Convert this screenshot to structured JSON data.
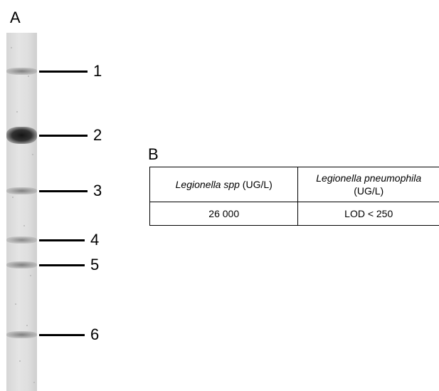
{
  "panel_a": {
    "label": "A",
    "bands": [
      {
        "label": "1",
        "intensity": 0.35
      },
      {
        "label": "2",
        "intensity": 1.0
      },
      {
        "label": "3",
        "intensity": 0.35
      },
      {
        "label": "4",
        "intensity": 0.3
      },
      {
        "label": "5",
        "intensity": 0.35
      },
      {
        "label": "6",
        "intensity": 0.35
      }
    ]
  },
  "panel_b": {
    "label": "B",
    "table": {
      "headers": [
        {
          "italic": "Legionella spp",
          "suffix": " (UG/L)"
        },
        {
          "italic": "Legionella pneumophila",
          "suffix": "(UG/L)"
        }
      ],
      "rows": [
        [
          "26 000",
          "LOD < 250"
        ]
      ]
    }
  },
  "colors": {
    "band": "#1a1a1a",
    "lane": "#dcdcdc",
    "line": "#000000"
  }
}
